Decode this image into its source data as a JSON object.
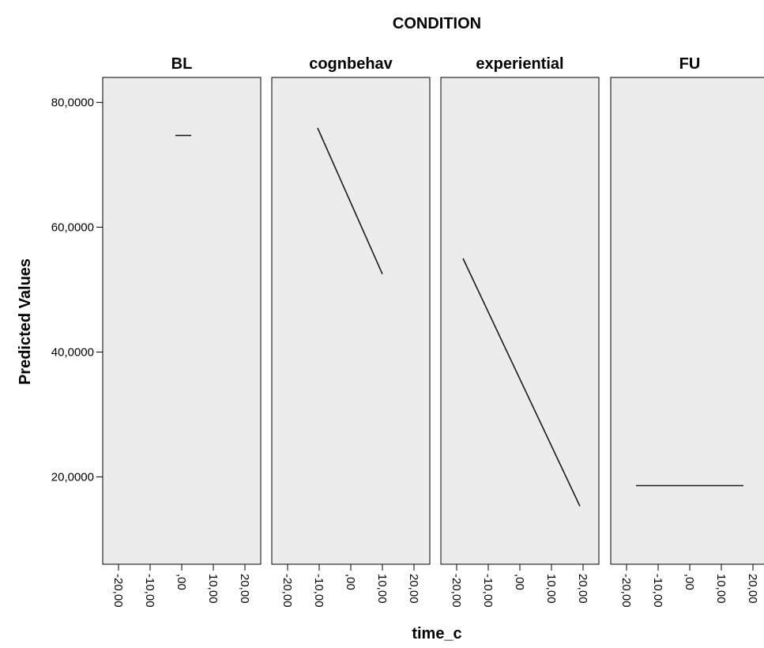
{
  "chart_data": {
    "type": "line",
    "title": "CONDITION",
    "xlabel": "time_c",
    "ylabel": "Predicted Values",
    "xlim": [
      -23,
      23
    ],
    "ylim": [
      6000,
      84000
    ],
    "x_ticks": [
      -20,
      -10,
      0,
      10,
      20
    ],
    "x_tick_labels": [
      "-20,00",
      "-10,00",
      ",00",
      "10,00",
      "20,00"
    ],
    "y_ticks": [
      20000,
      40000,
      60000,
      80000
    ],
    "y_tick_labels": [
      "20,0000",
      "40,0000",
      "60,0000",
      "80,0000"
    ],
    "grid": false,
    "panel_background": "#ececec",
    "line_color": "#1a1a1a",
    "panels": [
      {
        "name": "BL",
        "x": [
          -2,
          3
        ],
        "y": [
          74700,
          74700
        ]
      },
      {
        "name": "cognbehav",
        "x": [
          -10.5,
          10
        ],
        "y": [
          75900,
          52500
        ]
      },
      {
        "name": "experiential",
        "x": [
          -18,
          19
        ],
        "y": [
          55000,
          15300
        ]
      },
      {
        "name": "FU",
        "x": [
          -17,
          17
        ],
        "y": [
          18600,
          18600
        ]
      }
    ]
  }
}
